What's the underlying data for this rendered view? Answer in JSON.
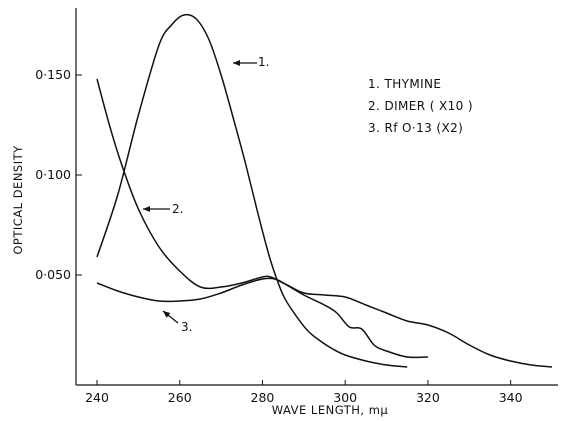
{
  "chart_data": {
    "type": "line",
    "title": "",
    "xlabel": "WAVE LENGTH,  mμ",
    "ylabel": "OPTICAL DENSITY",
    "xlim": [
      235,
      352
    ],
    "ylim": [
      -0.005,
      0.18
    ],
    "x_ticks": [
      "240",
      "260",
      "280",
      "300",
      "320",
      "340"
    ],
    "y_ticks": [
      "0·050",
      "0·100",
      "0·150"
    ],
    "legend": [
      "1.  THYMINE",
      "2.  DIMER  ( X10 )",
      "3.  Rf  O·13  (X2)"
    ],
    "legend_position": "top-right",
    "series": [
      {
        "name": "1. THYMINE",
        "label": "1.",
        "x": [
          240,
          245,
          250,
          255,
          258,
          261,
          264,
          267,
          270,
          273,
          276,
          279,
          282,
          285,
          288,
          291,
          294,
          297,
          300,
          305,
          310,
          315
        ],
        "y": [
          0.059,
          0.09,
          0.13,
          0.165,
          0.175,
          0.18,
          0.178,
          0.168,
          0.15,
          0.128,
          0.105,
          0.08,
          0.057,
          0.04,
          0.03,
          0.022,
          0.017,
          0.013,
          0.01,
          0.007,
          0.005,
          0.004
        ]
      },
      {
        "name": "2. DIMER (X10)",
        "label": "2.",
        "x": [
          240,
          243,
          246,
          250,
          255,
          260,
          265,
          270,
          275,
          280,
          282,
          285,
          290,
          295,
          298,
          301,
          304,
          307,
          310,
          315,
          320
        ],
        "y": [
          0.148,
          0.125,
          0.105,
          0.083,
          0.064,
          0.052,
          0.044,
          0.044,
          0.046,
          0.049,
          0.049,
          0.046,
          0.04,
          0.035,
          0.031,
          0.024,
          0.023,
          0.015,
          0.012,
          0.009,
          0.009
        ]
      },
      {
        "name": "3. Rf 0.13 (X2)",
        "label": "3.",
        "x": [
          240,
          245,
          250,
          255,
          260,
          265,
          270,
          275,
          280,
          283,
          286,
          290,
          295,
          300,
          305,
          310,
          315,
          320,
          325,
          330,
          335,
          340,
          345,
          350
        ],
        "y": [
          0.046,
          0.042,
          0.039,
          0.037,
          0.037,
          0.038,
          0.041,
          0.045,
          0.048,
          0.048,
          0.045,
          0.041,
          0.04,
          0.039,
          0.035,
          0.031,
          0.027,
          0.025,
          0.021,
          0.015,
          0.01,
          0.007,
          0.005,
          0.004
        ]
      }
    ],
    "grid": false
  }
}
